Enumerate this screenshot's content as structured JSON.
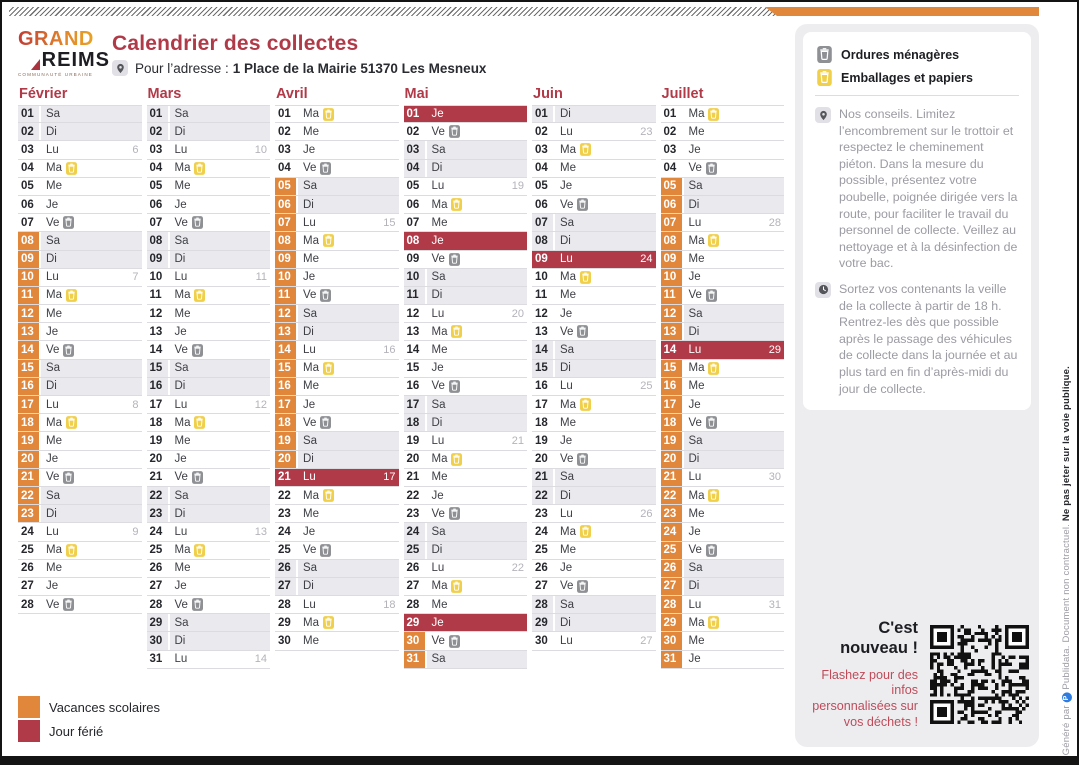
{
  "page": {
    "logo": {
      "line1": "GRAND",
      "line2": "REIMS",
      "tagline": "COMMUNAUTÉ URBAINE"
    },
    "title": "Calendrier des collectes",
    "address_label": "Pour l’adresse :",
    "address_value": "1 Place de la Mairie 51370 Les Mesneux"
  },
  "colors": {
    "accent_red": "#b13a49",
    "accent_orange": "#e0873c",
    "bin_gray": "#8e9094",
    "bin_yellow": "#f0cf4a",
    "weekend_bg": "#e9e9ee",
    "panel_bg": "#ededf0",
    "publidata_blue": "#2e7ce0"
  },
  "sidebar": {
    "legend": [
      {
        "icon": "waste-bin-gray-icon",
        "label": "Ordures ménagères"
      },
      {
        "icon": "recycling-bin-yellow-icon",
        "label": "Emballages et papiers"
      }
    ],
    "tips": [
      {
        "icon": "location-pin-icon",
        "text": "Nos conseils. Limitez l’encombrement sur le trottoir et respectez le cheminement piéton. Dans la mesure du possible, présentez votre poubelle, poignée dirigée vers la route, pour faciliter le travail du personnel de collecte. Veillez au nettoyage et à la désinfection de votre bac."
      },
      {
        "icon": "clock-icon",
        "text": "Sortez vos contenants la veille de la collecte à partir de 18 h. Rentrez-les dès que possible après le passage des véhicules de collecte dans la journée et au plus tard en fin d’après-midi du jour de collecte."
      }
    ],
    "new_banner": {
      "title": "C'est nouveau !",
      "subtitle": "Flashez pour des infos personnalisées sur vos déchets !"
    }
  },
  "legend_bottom": [
    {
      "color": "#e0873c",
      "label": "Vacances scolaires"
    },
    {
      "color": "#b13a49",
      "label": "Jour férié"
    }
  ],
  "footer_vertical": {
    "prefix": "Généré par ",
    "brand_initial": "P",
    "brand_rest": " Publidata. Document non contractuel. ",
    "bold": "Ne pas jeter sur la voie publique."
  },
  "months": [
    {
      "name": "Février",
      "days": [
        {
          "d": "01",
          "w": "Sa",
          "weekend": true
        },
        {
          "d": "02",
          "w": "Di",
          "weekend": true
        },
        {
          "d": "03",
          "w": "Lu",
          "week": 6
        },
        {
          "d": "04",
          "w": "Ma",
          "icon": "ep"
        },
        {
          "d": "05",
          "w": "Me"
        },
        {
          "d": "06",
          "w": "Je"
        },
        {
          "d": "07",
          "w": "Ve",
          "icon": "om"
        },
        {
          "d": "08",
          "w": "Sa",
          "weekend": true,
          "vac": true
        },
        {
          "d": "09",
          "w": "Di",
          "weekend": true,
          "vac": true
        },
        {
          "d": "10",
          "w": "Lu",
          "vac": true,
          "week": 7
        },
        {
          "d": "11",
          "w": "Ma",
          "vac": true,
          "icon": "ep"
        },
        {
          "d": "12",
          "w": "Me",
          "vac": true
        },
        {
          "d": "13",
          "w": "Je",
          "vac": true
        },
        {
          "d": "14",
          "w": "Ve",
          "vac": true,
          "icon": "om"
        },
        {
          "d": "15",
          "w": "Sa",
          "weekend": true,
          "vac": true
        },
        {
          "d": "16",
          "w": "Di",
          "weekend": true,
          "vac": true
        },
        {
          "d": "17",
          "w": "Lu",
          "vac": true,
          "week": 8
        },
        {
          "d": "18",
          "w": "Ma",
          "vac": true,
          "icon": "ep"
        },
        {
          "d": "19",
          "w": "Me",
          "vac": true
        },
        {
          "d": "20",
          "w": "Je",
          "vac": true
        },
        {
          "d": "21",
          "w": "Ve",
          "vac": true,
          "icon": "om"
        },
        {
          "d": "22",
          "w": "Sa",
          "weekend": true,
          "vac": true
        },
        {
          "d": "23",
          "w": "Di",
          "weekend": true,
          "vac": true
        },
        {
          "d": "24",
          "w": "Lu",
          "week": 9
        },
        {
          "d": "25",
          "w": "Ma",
          "icon": "ep"
        },
        {
          "d": "26",
          "w": "Me"
        },
        {
          "d": "27",
          "w": "Je"
        },
        {
          "d": "28",
          "w": "Ve",
          "icon": "om"
        }
      ]
    },
    {
      "name": "Mars",
      "days": [
        {
          "d": "01",
          "w": "Sa",
          "weekend": true
        },
        {
          "d": "02",
          "w": "Di",
          "weekend": true
        },
        {
          "d": "03",
          "w": "Lu",
          "week": 10
        },
        {
          "d": "04",
          "w": "Ma",
          "icon": "ep"
        },
        {
          "d": "05",
          "w": "Me"
        },
        {
          "d": "06",
          "w": "Je"
        },
        {
          "d": "07",
          "w": "Ve",
          "icon": "om"
        },
        {
          "d": "08",
          "w": "Sa",
          "weekend": true
        },
        {
          "d": "09",
          "w": "Di",
          "weekend": true
        },
        {
          "d": "10",
          "w": "Lu",
          "week": 11
        },
        {
          "d": "11",
          "w": "Ma",
          "icon": "ep"
        },
        {
          "d": "12",
          "w": "Me"
        },
        {
          "d": "13",
          "w": "Je"
        },
        {
          "d": "14",
          "w": "Ve",
          "icon": "om"
        },
        {
          "d": "15",
          "w": "Sa",
          "weekend": true
        },
        {
          "d": "16",
          "w": "Di",
          "weekend": true
        },
        {
          "d": "17",
          "w": "Lu",
          "week": 12
        },
        {
          "d": "18",
          "w": "Ma",
          "icon": "ep"
        },
        {
          "d": "19",
          "w": "Me"
        },
        {
          "d": "20",
          "w": "Je"
        },
        {
          "d": "21",
          "w": "Ve",
          "icon": "om"
        },
        {
          "d": "22",
          "w": "Sa",
          "weekend": true
        },
        {
          "d": "23",
          "w": "Di",
          "weekend": true
        },
        {
          "d": "24",
          "w": "Lu",
          "week": 13
        },
        {
          "d": "25",
          "w": "Ma",
          "icon": "ep"
        },
        {
          "d": "26",
          "w": "Me"
        },
        {
          "d": "27",
          "w": "Je"
        },
        {
          "d": "28",
          "w": "Ve",
          "icon": "om"
        },
        {
          "d": "29",
          "w": "Sa",
          "weekend": true
        },
        {
          "d": "30",
          "w": "Di",
          "weekend": true
        },
        {
          "d": "31",
          "w": "Lu",
          "week": 14
        }
      ]
    },
    {
      "name": "Avril",
      "days": [
        {
          "d": "01",
          "w": "Ma",
          "icon": "ep"
        },
        {
          "d": "02",
          "w": "Me"
        },
        {
          "d": "03",
          "w": "Je"
        },
        {
          "d": "04",
          "w": "Ve",
          "icon": "om"
        },
        {
          "d": "05",
          "w": "Sa",
          "weekend": true,
          "vac": true
        },
        {
          "d": "06",
          "w": "Di",
          "weekend": true,
          "vac": true
        },
        {
          "d": "07",
          "w": "Lu",
          "vac": true,
          "week": 15
        },
        {
          "d": "08",
          "w": "Ma",
          "vac": true,
          "icon": "ep"
        },
        {
          "d": "09",
          "w": "Me",
          "vac": true
        },
        {
          "d": "10",
          "w": "Je",
          "vac": true
        },
        {
          "d": "11",
          "w": "Ve",
          "vac": true,
          "icon": "om"
        },
        {
          "d": "12",
          "w": "Sa",
          "weekend": true,
          "vac": true
        },
        {
          "d": "13",
          "w": "Di",
          "weekend": true,
          "vac": true
        },
        {
          "d": "14",
          "w": "Lu",
          "vac": true,
          "week": 16
        },
        {
          "d": "15",
          "w": "Ma",
          "vac": true,
          "icon": "ep"
        },
        {
          "d": "16",
          "w": "Me",
          "vac": true
        },
        {
          "d": "17",
          "w": "Je",
          "vac": true
        },
        {
          "d": "18",
          "w": "Ve",
          "vac": true,
          "icon": "om"
        },
        {
          "d": "19",
          "w": "Sa",
          "weekend": true,
          "vac": true
        },
        {
          "d": "20",
          "w": "Di",
          "weekend": true,
          "vac": true
        },
        {
          "d": "21",
          "w": "Lu",
          "ferie": true,
          "week": 17
        },
        {
          "d": "22",
          "w": "Ma",
          "icon": "ep"
        },
        {
          "d": "23",
          "w": "Me"
        },
        {
          "d": "24",
          "w": "Je"
        },
        {
          "d": "25",
          "w": "Ve",
          "icon": "om"
        },
        {
          "d": "26",
          "w": "Sa",
          "weekend": true
        },
        {
          "d": "27",
          "w": "Di",
          "weekend": true
        },
        {
          "d": "28",
          "w": "Lu",
          "week": 18
        },
        {
          "d": "29",
          "w": "Ma",
          "icon": "ep"
        },
        {
          "d": "30",
          "w": "Me"
        }
      ]
    },
    {
      "name": "Mai",
      "days": [
        {
          "d": "01",
          "w": "Je",
          "ferie": true
        },
        {
          "d": "02",
          "w": "Ve",
          "icon": "om"
        },
        {
          "d": "03",
          "w": "Sa",
          "weekend": true
        },
        {
          "d": "04",
          "w": "Di",
          "weekend": true
        },
        {
          "d": "05",
          "w": "Lu",
          "week": 19
        },
        {
          "d": "06",
          "w": "Ma",
          "icon": "ep"
        },
        {
          "d": "07",
          "w": "Me"
        },
        {
          "d": "08",
          "w": "Je",
          "ferie": true
        },
        {
          "d": "09",
          "w": "Ve",
          "icon": "om"
        },
        {
          "d": "10",
          "w": "Sa",
          "weekend": true
        },
        {
          "d": "11",
          "w": "Di",
          "weekend": true
        },
        {
          "d": "12",
          "w": "Lu",
          "week": 20
        },
        {
          "d": "13",
          "w": "Ma",
          "icon": "ep"
        },
        {
          "d": "14",
          "w": "Me"
        },
        {
          "d": "15",
          "w": "Je"
        },
        {
          "d": "16",
          "w": "Ve",
          "icon": "om"
        },
        {
          "d": "17",
          "w": "Sa",
          "weekend": true
        },
        {
          "d": "18",
          "w": "Di",
          "weekend": true
        },
        {
          "d": "19",
          "w": "Lu",
          "week": 21
        },
        {
          "d": "20",
          "w": "Ma",
          "icon": "ep"
        },
        {
          "d": "21",
          "w": "Me"
        },
        {
          "d": "22",
          "w": "Je"
        },
        {
          "d": "23",
          "w": "Ve",
          "icon": "om"
        },
        {
          "d": "24",
          "w": "Sa",
          "weekend": true
        },
        {
          "d": "25",
          "w": "Di",
          "weekend": true
        },
        {
          "d": "26",
          "w": "Lu",
          "week": 22
        },
        {
          "d": "27",
          "w": "Ma",
          "icon": "ep"
        },
        {
          "d": "28",
          "w": "Me"
        },
        {
          "d": "29",
          "w": "Je",
          "ferie": true
        },
        {
          "d": "30",
          "w": "Ve",
          "vac": true,
          "icon": "om"
        },
        {
          "d": "31",
          "w": "Sa",
          "weekend": true,
          "vac": true
        }
      ]
    },
    {
      "name": "Juin",
      "days": [
        {
          "d": "01",
          "w": "Di",
          "weekend": true
        },
        {
          "d": "02",
          "w": "Lu",
          "week": 23
        },
        {
          "d": "03",
          "w": "Ma",
          "icon": "ep"
        },
        {
          "d": "04",
          "w": "Me"
        },
        {
          "d": "05",
          "w": "Je"
        },
        {
          "d": "06",
          "w": "Ve",
          "icon": "om"
        },
        {
          "d": "07",
          "w": "Sa",
          "weekend": true
        },
        {
          "d": "08",
          "w": "Di",
          "weekend": true
        },
        {
          "d": "09",
          "w": "Lu",
          "ferie": true,
          "week": 24
        },
        {
          "d": "10",
          "w": "Ma",
          "icon": "ep"
        },
        {
          "d": "11",
          "w": "Me"
        },
        {
          "d": "12",
          "w": "Je"
        },
        {
          "d": "13",
          "w": "Ve",
          "icon": "om"
        },
        {
          "d": "14",
          "w": "Sa",
          "weekend": true
        },
        {
          "d": "15",
          "w": "Di",
          "weekend": true
        },
        {
          "d": "16",
          "w": "Lu",
          "week": 25
        },
        {
          "d": "17",
          "w": "Ma",
          "icon": "ep"
        },
        {
          "d": "18",
          "w": "Me"
        },
        {
          "d": "19",
          "w": "Je"
        },
        {
          "d": "20",
          "w": "Ve",
          "icon": "om"
        },
        {
          "d": "21",
          "w": "Sa",
          "weekend": true
        },
        {
          "d": "22",
          "w": "Di",
          "weekend": true
        },
        {
          "d": "23",
          "w": "Lu",
          "week": 26
        },
        {
          "d": "24",
          "w": "Ma",
          "icon": "ep"
        },
        {
          "d": "25",
          "w": "Me"
        },
        {
          "d": "26",
          "w": "Je"
        },
        {
          "d": "27",
          "w": "Ve",
          "icon": "om"
        },
        {
          "d": "28",
          "w": "Sa",
          "weekend": true
        },
        {
          "d": "29",
          "w": "Di",
          "weekend": true
        },
        {
          "d": "30",
          "w": "Lu",
          "week": 27
        }
      ]
    },
    {
      "name": "Juillet",
      "days": [
        {
          "d": "01",
          "w": "Ma",
          "icon": "ep"
        },
        {
          "d": "02",
          "w": "Me"
        },
        {
          "d": "03",
          "w": "Je"
        },
        {
          "d": "04",
          "w": "Ve",
          "icon": "om"
        },
        {
          "d": "05",
          "w": "Sa",
          "weekend": true,
          "vac": true
        },
        {
          "d": "06",
          "w": "Di",
          "weekend": true,
          "vac": true
        },
        {
          "d": "07",
          "w": "Lu",
          "vac": true,
          "week": 28
        },
        {
          "d": "08",
          "w": "Ma",
          "vac": true,
          "icon": "ep"
        },
        {
          "d": "09",
          "w": "Me",
          "vac": true
        },
        {
          "d": "10",
          "w": "Je",
          "vac": true
        },
        {
          "d": "11",
          "w": "Ve",
          "vac": true,
          "icon": "om"
        },
        {
          "d": "12",
          "w": "Sa",
          "weekend": true,
          "vac": true
        },
        {
          "d": "13",
          "w": "Di",
          "weekend": true,
          "vac": true
        },
        {
          "d": "14",
          "w": "Lu",
          "ferie": true,
          "week": 29
        },
        {
          "d": "15",
          "w": "Ma",
          "vac": true,
          "icon": "ep"
        },
        {
          "d": "16",
          "w": "Me",
          "vac": true
        },
        {
          "d": "17",
          "w": "Je",
          "vac": true
        },
        {
          "d": "18",
          "w": "Ve",
          "vac": true,
          "icon": "om"
        },
        {
          "d": "19",
          "w": "Sa",
          "weekend": true,
          "vac": true
        },
        {
          "d": "20",
          "w": "Di",
          "weekend": true,
          "vac": true
        },
        {
          "d": "21",
          "w": "Lu",
          "vac": true,
          "week": 30
        },
        {
          "d": "22",
          "w": "Ma",
          "vac": true,
          "icon": "ep"
        },
        {
          "d": "23",
          "w": "Me",
          "vac": true
        },
        {
          "d": "24",
          "w": "Je",
          "vac": true
        },
        {
          "d": "25",
          "w": "Ve",
          "vac": true,
          "icon": "om"
        },
        {
          "d": "26",
          "w": "Sa",
          "weekend": true,
          "vac": true
        },
        {
          "d": "27",
          "w": "Di",
          "weekend": true,
          "vac": true
        },
        {
          "d": "28",
          "w": "Lu",
          "vac": true,
          "week": 31
        },
        {
          "d": "29",
          "w": "Ma",
          "vac": true,
          "icon": "ep"
        },
        {
          "d": "30",
          "w": "Me",
          "vac": true
        },
        {
          "d": "31",
          "w": "Je",
          "vac": true
        }
      ]
    }
  ]
}
